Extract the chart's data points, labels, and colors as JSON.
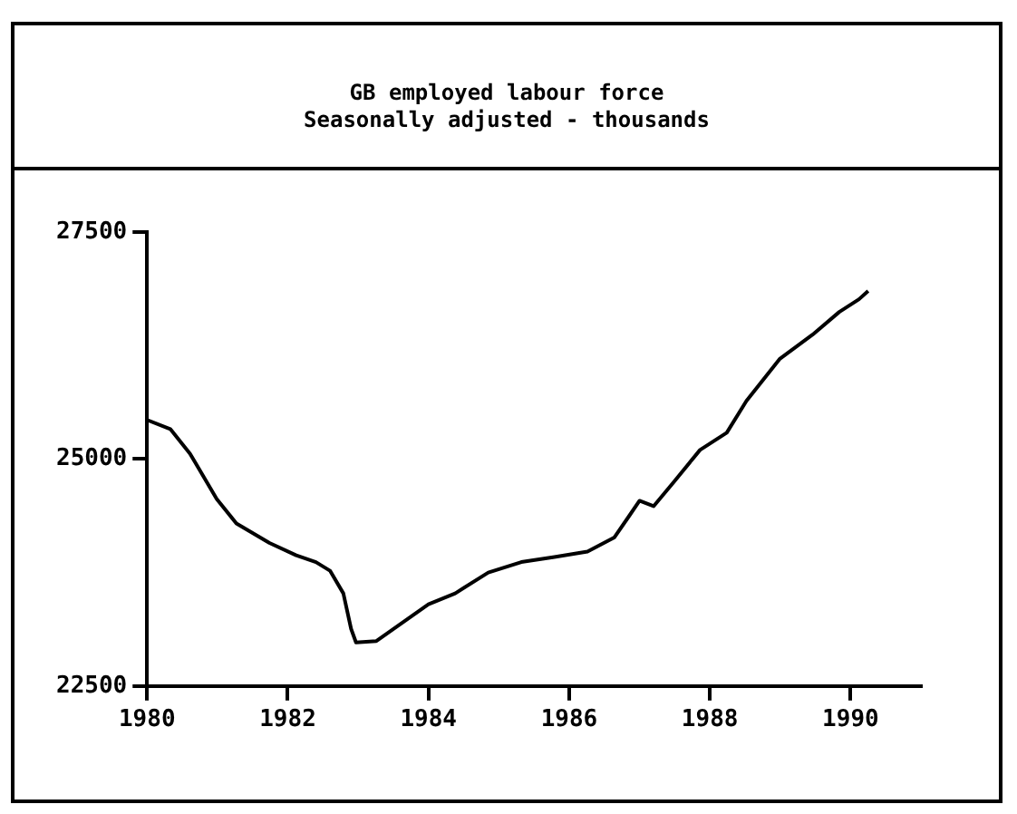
{
  "chart_data": {
    "type": "line",
    "title": "GB employed labour force",
    "subtitle": "Seasonally adjusted - thousands",
    "x": [
      1980.0,
      1980.33,
      1980.61,
      1980.99,
      1981.27,
      1981.74,
      1982.12,
      1982.4,
      1982.6,
      1982.79,
      1982.9,
      1982.97,
      1983.26,
      1984.0,
      1984.38,
      1984.85,
      1985.32,
      1985.79,
      1986.26,
      1986.64,
      1986.85,
      1987.0,
      1987.2,
      1987.49,
      1987.86,
      1988.24,
      1988.52,
      1988.99,
      1989.46,
      1989.84,
      1990.12,
      1990.25
    ],
    "series": [
      {
        "color": "#000000",
        "values": [
          25430,
          25330,
          25060,
          24560,
          24290,
          24075,
          23940,
          23865,
          23770,
          23520,
          23130,
          22980,
          22995,
          23400,
          23520,
          23750,
          23865,
          23920,
          23980,
          24135,
          24370,
          24540,
          24480,
          24750,
          25100,
          25290,
          25640,
          26100,
          26370,
          26620,
          26760,
          26850
        ]
      }
    ],
    "xlim": [
      1980,
      1991
    ],
    "xticks": [
      1980,
      1982,
      1984,
      1986,
      1988,
      1990
    ],
    "ylim": [
      22500,
      27500
    ],
    "yticks": [
      22500,
      25000,
      27500
    ],
    "grid": false,
    "legend": false,
    "marker": "none",
    "line_style": "solid"
  }
}
